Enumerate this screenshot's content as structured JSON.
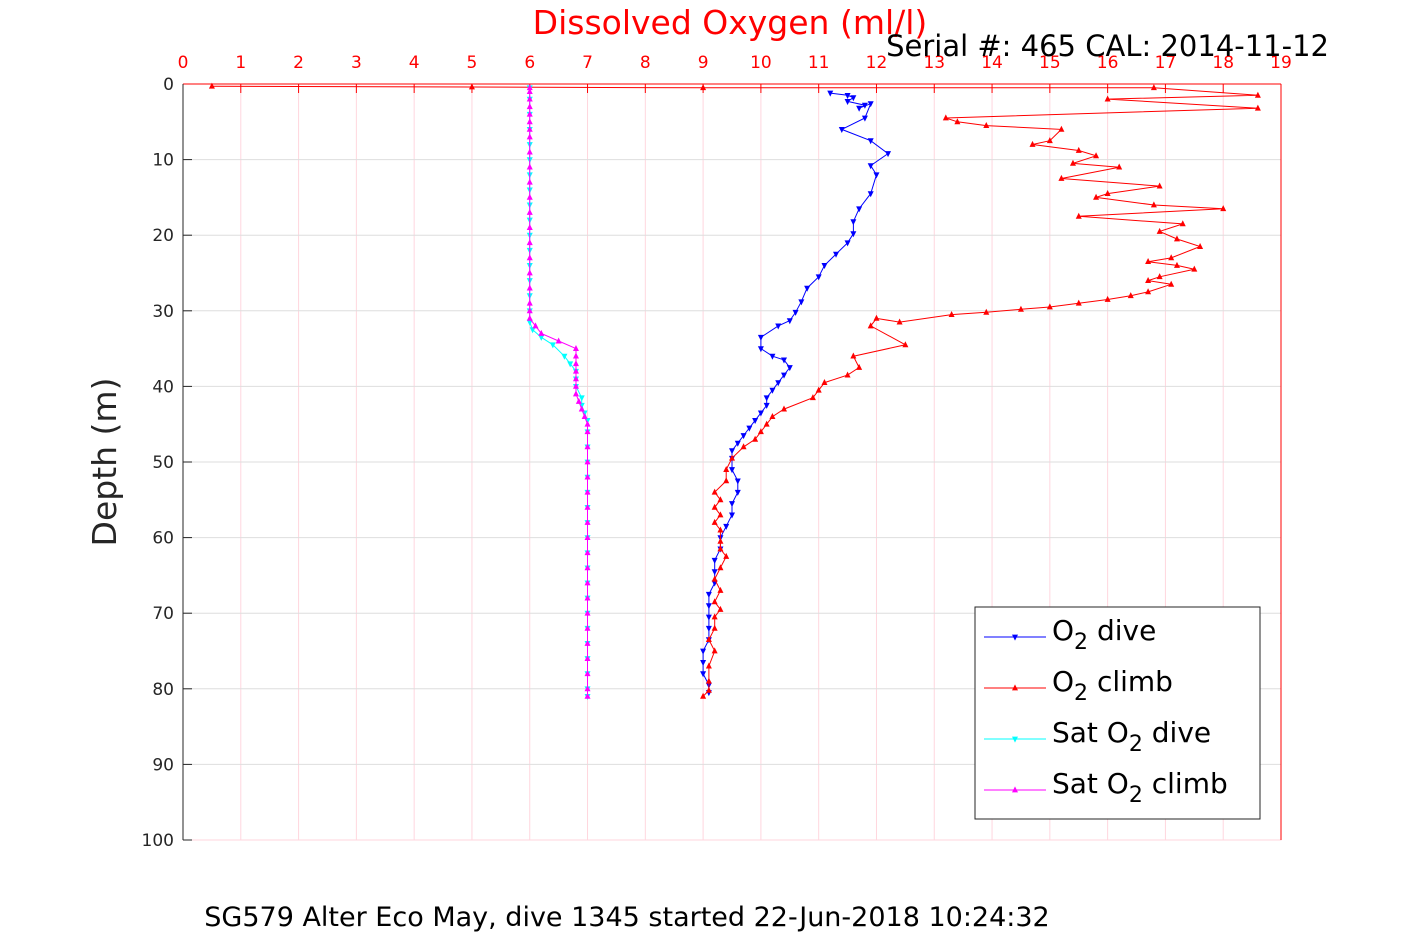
{
  "chart_data": {
    "type": "line",
    "title": "Dissolved Oxygen (ml/l)",
    "subtitle": "Serial #: 465  CAL: 2014-11-12",
    "ylabel": "Depth (m)",
    "footer": "SG579 Alter Eco May, dive 1345 started 22-Jun-2018 10:24:32",
    "xlim": [
      0,
      19
    ],
    "ylim": [
      0,
      100
    ],
    "y_reversed": true,
    "x_axis_position": "top",
    "x_ticks": [
      "0",
      "1",
      "2",
      "3",
      "4",
      "5",
      "6",
      "7",
      "8",
      "9",
      "10",
      "11",
      "12",
      "13",
      "14",
      "15",
      "16",
      "17",
      "18",
      "19"
    ],
    "y_ticks": [
      "0",
      "10",
      "20",
      "30",
      "40",
      "50",
      "60",
      "70",
      "80",
      "90",
      "100"
    ],
    "grid": true,
    "legend_position": "bottom-right",
    "colors": {
      "axis": "#ff0000",
      "grid": "#ffd6de"
    },
    "series": [
      {
        "name": "O2 dive",
        "legend_main": "O",
        "legend_sub": "2",
        "legend_after": " dive",
        "color": "#0000ff",
        "marker": "triangle-down",
        "points": [
          [
            11.2,
            1.2
          ],
          [
            11.5,
            1.5
          ],
          [
            11.6,
            1.8
          ],
          [
            11.5,
            2.3
          ],
          [
            11.8,
            2.8
          ],
          [
            11.7,
            3.2
          ],
          [
            11.9,
            2.6
          ],
          [
            11.8,
            4.5
          ],
          [
            11.4,
            6.0
          ],
          [
            11.9,
            7.5
          ],
          [
            12.2,
            9.2
          ],
          [
            11.9,
            10.8
          ],
          [
            12.0,
            12.0
          ],
          [
            11.9,
            14.5
          ],
          [
            11.7,
            16.5
          ],
          [
            11.6,
            18.2
          ],
          [
            11.6,
            19.8
          ],
          [
            11.5,
            21.0
          ],
          [
            11.3,
            22.5
          ],
          [
            11.1,
            24.0
          ],
          [
            11.0,
            25.5
          ],
          [
            10.8,
            27.0
          ],
          [
            10.7,
            28.8
          ],
          [
            10.6,
            30.2
          ],
          [
            10.5,
            31.3
          ],
          [
            10.3,
            32.0
          ],
          [
            10.0,
            33.5
          ],
          [
            10.0,
            35.0
          ],
          [
            10.2,
            36.0
          ],
          [
            10.4,
            36.5
          ],
          [
            10.5,
            37.5
          ],
          [
            10.4,
            38.5
          ],
          [
            10.3,
            39.5
          ],
          [
            10.2,
            40.5
          ],
          [
            10.1,
            41.5
          ],
          [
            10.1,
            42.5
          ],
          [
            10.0,
            43.5
          ],
          [
            9.9,
            44.5
          ],
          [
            9.8,
            45.5
          ],
          [
            9.7,
            46.5
          ],
          [
            9.6,
            47.5
          ],
          [
            9.5,
            48.5
          ],
          [
            9.5,
            49.5
          ],
          [
            9.5,
            51.0
          ],
          [
            9.6,
            52.5
          ],
          [
            9.6,
            54.0
          ],
          [
            9.5,
            55.5
          ],
          [
            9.5,
            57.0
          ],
          [
            9.4,
            58.5
          ],
          [
            9.3,
            60.0
          ],
          [
            9.3,
            61.5
          ],
          [
            9.2,
            63.0
          ],
          [
            9.2,
            64.5
          ],
          [
            9.2,
            66.0
          ],
          [
            9.1,
            67.5
          ],
          [
            9.1,
            69.0
          ],
          [
            9.1,
            70.5
          ],
          [
            9.1,
            72.0
          ],
          [
            9.1,
            73.5
          ],
          [
            9.0,
            75.0
          ],
          [
            9.0,
            76.5
          ],
          [
            9.0,
            78.0
          ],
          [
            9.1,
            79.5
          ],
          [
            9.1,
            80.5
          ]
        ]
      },
      {
        "name": "O2 climb",
        "legend_main": "O",
        "legend_sub": "2",
        "legend_after": " climb",
        "color": "#ff0000",
        "marker": "triangle-up",
        "points": [
          [
            9.0,
            81.0
          ],
          [
            9.1,
            80.2
          ],
          [
            9.1,
            79.0
          ],
          [
            9.1,
            77.0
          ],
          [
            9.2,
            75.0
          ],
          [
            9.1,
            73.5
          ],
          [
            9.2,
            72.0
          ],
          [
            9.2,
            70.5
          ],
          [
            9.3,
            69.5
          ],
          [
            9.2,
            68.5
          ],
          [
            9.3,
            67.0
          ],
          [
            9.2,
            65.5
          ],
          [
            9.3,
            64.0
          ],
          [
            9.4,
            62.5
          ],
          [
            9.3,
            61.5
          ],
          [
            9.3,
            60.5
          ],
          [
            9.3,
            59.0
          ],
          [
            9.2,
            58.0
          ],
          [
            9.3,
            57.0
          ],
          [
            9.2,
            56.0
          ],
          [
            9.3,
            55.0
          ],
          [
            9.2,
            54.0
          ],
          [
            9.4,
            52.5
          ],
          [
            9.4,
            51.0
          ],
          [
            9.5,
            49.5
          ],
          [
            9.7,
            48.0
          ],
          [
            9.9,
            47.0
          ],
          [
            10.0,
            46.0
          ],
          [
            10.1,
            45.0
          ],
          [
            10.2,
            44.0
          ],
          [
            10.4,
            43.0
          ],
          [
            10.9,
            41.5
          ],
          [
            11.0,
            40.5
          ],
          [
            11.1,
            39.5
          ],
          [
            11.5,
            38.5
          ],
          [
            11.7,
            37.5
          ],
          [
            11.6,
            36.0
          ],
          [
            12.5,
            34.5
          ],
          [
            11.9,
            32.0
          ],
          [
            12.0,
            31.0
          ],
          [
            12.4,
            31.5
          ],
          [
            13.3,
            30.5
          ],
          [
            13.9,
            30.2
          ],
          [
            14.5,
            29.8
          ],
          [
            15.0,
            29.5
          ],
          [
            15.5,
            29.0
          ],
          [
            16.0,
            28.5
          ],
          [
            16.4,
            28.0
          ],
          [
            16.7,
            27.5
          ],
          [
            17.1,
            26.5
          ],
          [
            16.7,
            26.0
          ],
          [
            16.9,
            25.5
          ],
          [
            17.5,
            24.5
          ],
          [
            17.2,
            24.0
          ],
          [
            16.7,
            23.5
          ],
          [
            17.1,
            23.0
          ],
          [
            17.6,
            21.5
          ],
          [
            17.2,
            20.5
          ],
          [
            16.9,
            19.5
          ],
          [
            17.3,
            18.5
          ],
          [
            15.5,
            17.5
          ],
          [
            18.0,
            16.5
          ],
          [
            16.8,
            16.0
          ],
          [
            15.8,
            15.0
          ],
          [
            16.0,
            14.5
          ],
          [
            16.9,
            13.5
          ],
          [
            15.2,
            12.5
          ],
          [
            16.2,
            11.0
          ],
          [
            15.4,
            10.5
          ],
          [
            15.8,
            9.5
          ],
          [
            15.5,
            8.8
          ],
          [
            14.7,
            8.0
          ],
          [
            15.0,
            7.5
          ],
          [
            15.2,
            6.0
          ],
          [
            13.9,
            5.5
          ],
          [
            13.4,
            5.0
          ],
          [
            13.2,
            4.5
          ],
          [
            18.6,
            3.2
          ],
          [
            16.0,
            2.0
          ],
          [
            18.6,
            1.5
          ],
          [
            16.8,
            0.5
          ],
          [
            9.0,
            0.5
          ],
          [
            5.0,
            0.4
          ],
          [
            0.5,
            0.3
          ]
        ]
      },
      {
        "name": "Sat O2 dive",
        "legend_main": "Sat O",
        "legend_sub": "2",
        "legend_after": " dive",
        "color": "#00ffff",
        "marker": "triangle-down",
        "points": [
          [
            6.0,
            0.5
          ],
          [
            6.0,
            2.0
          ],
          [
            6.0,
            4.0
          ],
          [
            6.0,
            6.0
          ],
          [
            6.0,
            8.0
          ],
          [
            6.0,
            10.0
          ],
          [
            6.0,
            12.0
          ],
          [
            6.0,
            14.0
          ],
          [
            6.0,
            16.0
          ],
          [
            6.0,
            18.0
          ],
          [
            6.0,
            20.0
          ],
          [
            6.0,
            22.0
          ],
          [
            6.0,
            24.0
          ],
          [
            6.0,
            26.0
          ],
          [
            6.0,
            28.0
          ],
          [
            6.0,
            30.0
          ],
          [
            6.0,
            31.5
          ],
          [
            6.05,
            32.5
          ],
          [
            6.2,
            33.5
          ],
          [
            6.4,
            34.5
          ],
          [
            6.6,
            36.0
          ],
          [
            6.7,
            37.0
          ],
          [
            6.8,
            38.0
          ],
          [
            6.8,
            39.0
          ],
          [
            6.8,
            40.0
          ],
          [
            6.9,
            41.5
          ],
          [
            6.9,
            42.5
          ],
          [
            6.95,
            43.5
          ],
          [
            7.0,
            44.5
          ],
          [
            7.0,
            46.0
          ],
          [
            7.0,
            48.0
          ],
          [
            7.0,
            50.0
          ],
          [
            7.0,
            52.0
          ],
          [
            7.0,
            54.0
          ],
          [
            7.0,
            56.0
          ],
          [
            7.0,
            58.0
          ],
          [
            7.0,
            60.0
          ],
          [
            7.0,
            62.0
          ],
          [
            7.0,
            64.0
          ],
          [
            7.0,
            66.0
          ],
          [
            7.0,
            68.0
          ],
          [
            7.0,
            70.0
          ],
          [
            7.0,
            72.0
          ],
          [
            7.0,
            74.0
          ],
          [
            7.0,
            76.0
          ],
          [
            7.0,
            78.0
          ],
          [
            7.0,
            80.0
          ],
          [
            7.0,
            81.0
          ]
        ]
      },
      {
        "name": "Sat O2 climb",
        "legend_main": "Sat O",
        "legend_sub": "2",
        "legend_after": " climb",
        "color": "#ff00ff",
        "marker": "triangle-up",
        "points": [
          [
            7.0,
            81.0
          ],
          [
            7.0,
            80.0
          ],
          [
            7.0,
            78.0
          ],
          [
            7.0,
            76.0
          ],
          [
            7.0,
            74.0
          ],
          [
            7.0,
            72.0
          ],
          [
            7.0,
            70.0
          ],
          [
            7.0,
            68.0
          ],
          [
            7.0,
            66.0
          ],
          [
            7.0,
            64.0
          ],
          [
            7.0,
            62.0
          ],
          [
            7.0,
            60.0
          ],
          [
            7.0,
            58.0
          ],
          [
            7.0,
            56.0
          ],
          [
            7.0,
            54.0
          ],
          [
            7.0,
            52.0
          ],
          [
            7.0,
            50.0
          ],
          [
            7.0,
            48.0
          ],
          [
            7.0,
            46.0
          ],
          [
            7.0,
            45.0
          ],
          [
            6.95,
            44.0
          ],
          [
            6.9,
            43.0
          ],
          [
            6.85,
            42.0
          ],
          [
            6.8,
            41.0
          ],
          [
            6.8,
            40.0
          ],
          [
            6.8,
            39.0
          ],
          [
            6.8,
            38.0
          ],
          [
            6.8,
            37.0
          ],
          [
            6.8,
            36.0
          ],
          [
            6.8,
            35.0
          ],
          [
            6.5,
            34.0
          ],
          [
            6.2,
            33.0
          ],
          [
            6.1,
            32.0
          ],
          [
            6.0,
            31.0
          ],
          [
            6.0,
            30.0
          ],
          [
            6.0,
            29.0
          ],
          [
            6.0,
            27.0
          ],
          [
            6.0,
            25.0
          ],
          [
            6.0,
            23.0
          ],
          [
            6.0,
            21.0
          ],
          [
            6.0,
            19.0
          ],
          [
            6.0,
            17.0
          ],
          [
            6.0,
            15.0
          ],
          [
            6.0,
            13.0
          ],
          [
            6.0,
            11.0
          ],
          [
            6.0,
            9.0
          ],
          [
            6.0,
            7.0
          ],
          [
            6.0,
            6.0
          ],
          [
            6.0,
            5.0
          ],
          [
            6.0,
            4.0
          ],
          [
            6.0,
            3.0
          ],
          [
            6.0,
            2.0
          ],
          [
            6.0,
            1.0
          ],
          [
            6.0,
            0.5
          ]
        ]
      }
    ]
  }
}
